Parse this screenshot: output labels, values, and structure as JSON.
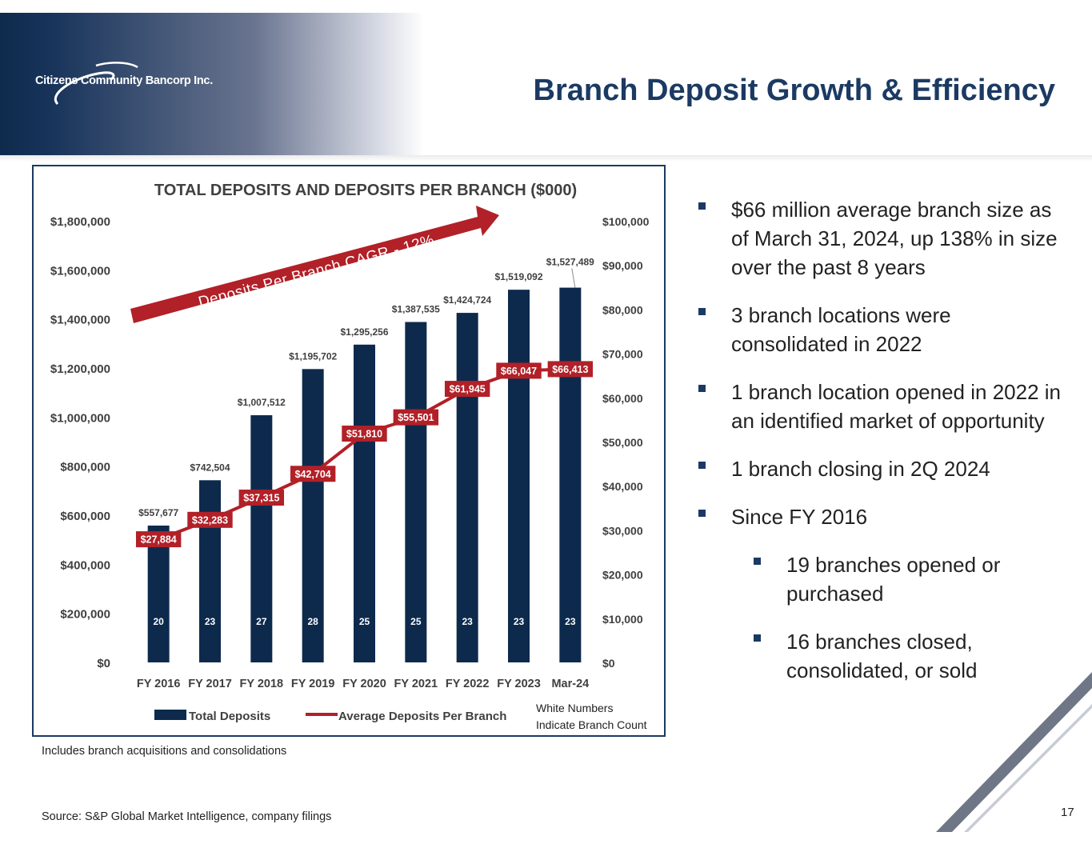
{
  "header": {
    "logo_text": "Citizens Community Bancorp Inc.",
    "title": "Branch Deposit Growth & Efficiency"
  },
  "chart_data": {
    "type": "bar",
    "title": "TOTAL DEPOSITS AND DEPOSITS PER BRANCH ($000)",
    "categories": [
      "FY 2016",
      "FY 2017",
      "FY 2018",
      "FY 2019",
      "FY 2020",
      "FY 2021",
      "FY 2022",
      "FY 2023",
      "Mar-24"
    ],
    "series": [
      {
        "name": "Total Deposits",
        "type": "bar",
        "axis": "left",
        "values": [
          557677,
          742504,
          1007512,
          1195702,
          1295256,
          1387535,
          1424724,
          1519092,
          1527489
        ],
        "labels": [
          "$557,677",
          "$742,504",
          "$1,007,512",
          "$1,195,702",
          "$1,295,256",
          "$1,387,535",
          "$1,424,724",
          "$1,519,092",
          "$1,527,489"
        ],
        "color": "#0d2a4d"
      },
      {
        "name": "Average Deposits Per Branch",
        "type": "line",
        "axis": "right",
        "values": [
          27884,
          32283,
          37315,
          42704,
          51810,
          55501,
          61945,
          66047,
          66413
        ],
        "labels": [
          "$27,884",
          "$32,283",
          "$37,315",
          "$42,704",
          "$51,810",
          "$55,501",
          "$61,945",
          "$66,047",
          "$66,413"
        ],
        "color": "#b22028"
      }
    ],
    "branch_counts": [
      "20",
      "23",
      "27",
      "28",
      "25",
      "25",
      "23",
      "23",
      "23"
    ],
    "left_axis": {
      "ylim": [
        0,
        1800000
      ],
      "ticks": [
        "$0",
        "$200,000",
        "$400,000",
        "$600,000",
        "$800,000",
        "$1,000,000",
        "$1,200,000",
        "$1,400,000",
        "$1,600,000",
        "$1,800,000"
      ]
    },
    "right_axis": {
      "ylim": [
        0,
        100000
      ],
      "ticks": [
        "$0",
        "$10,000",
        "$20,000",
        "$30,000",
        "$40,000",
        "$50,000",
        "$60,000",
        "$70,000",
        "$80,000",
        "$90,000",
        "$100,000"
      ]
    },
    "legend": {
      "position": "bottom",
      "items": [
        "Total Deposits",
        "Average Deposits Per Branch"
      ],
      "note": [
        "White Numbers",
        "Indicate Branch Count"
      ]
    },
    "annotation": "Deposits Per Branch CAGR - 12%",
    "grid": false
  },
  "bullets": [
    {
      "text": "$66 million average branch size as of March 31, 2024, up 138% in size over the past 8 years",
      "level": 1
    },
    {
      "text": "3 branch locations were consolidated in 2022",
      "level": 1
    },
    {
      "text": "1 branch location opened in 2022 in an identified market of opportunity",
      "level": 1
    },
    {
      "text": "1 branch closing in 2Q 2024",
      "level": 1
    },
    {
      "text": "Since FY 2016",
      "level": 1
    },
    {
      "text": "19 branches opened or purchased",
      "level": 2
    },
    {
      "text": "16 branches closed, consolidated, or sold",
      "level": 2
    }
  ],
  "footnote": "Includes branch acquisitions and consolidations",
  "source": "Source: S&P Global Market Intelligence, company filings",
  "page_number": "17",
  "colors": {
    "navy": "#0d2a4d",
    "title_blue": "#1b3a63",
    "red": "#b22028"
  }
}
